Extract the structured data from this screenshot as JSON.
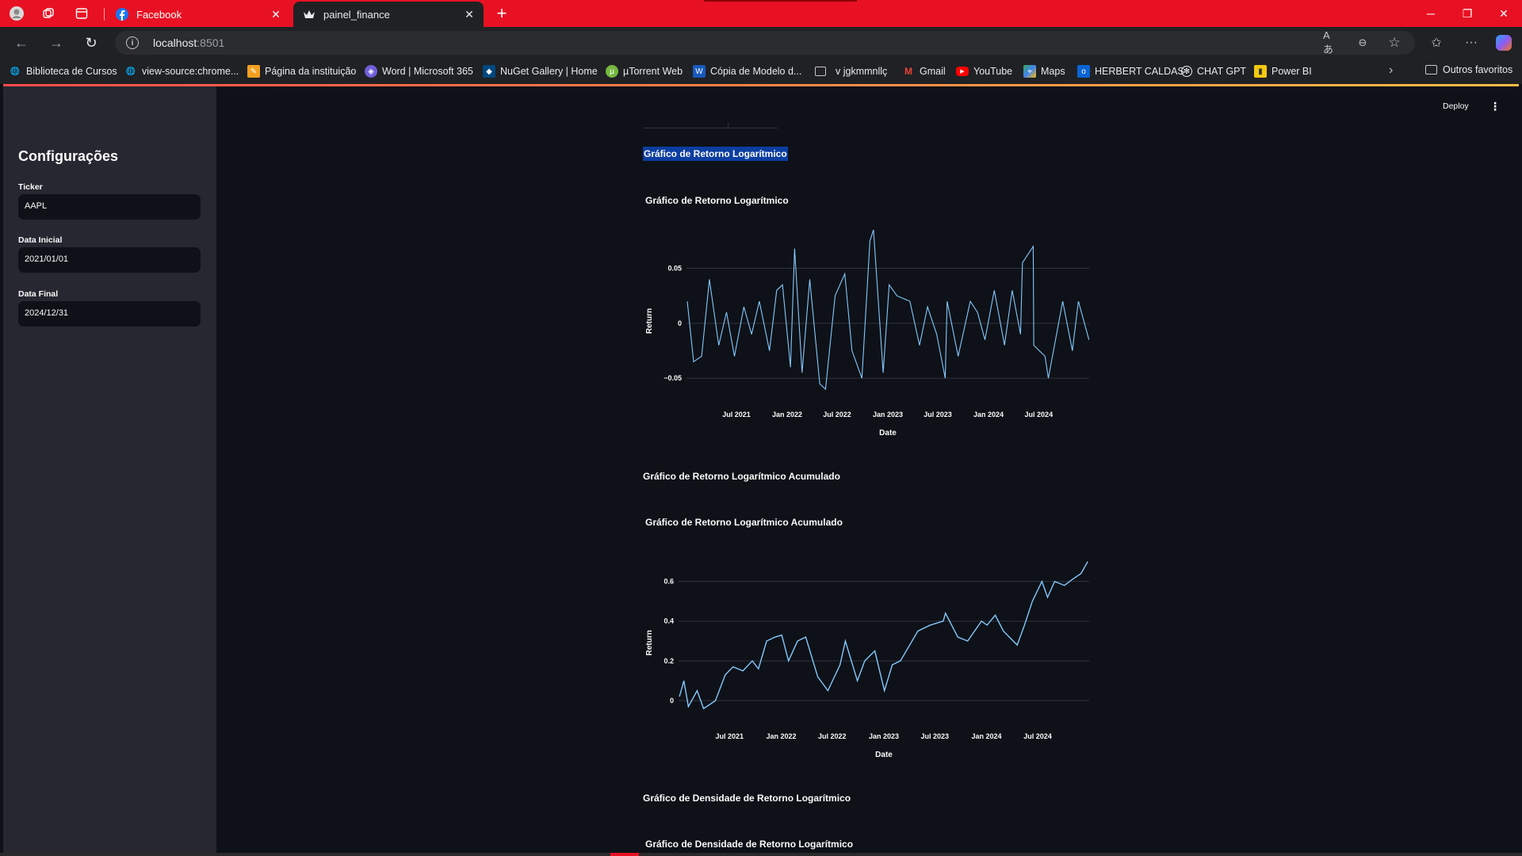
{
  "browser": {
    "tabs": [
      {
        "title": "Facebook",
        "favicon": "facebook-icon",
        "active": false
      },
      {
        "title": "painel_finance",
        "favicon": "streamlit-crown-icon",
        "active": true
      }
    ],
    "address": {
      "host": "localhost",
      "port": ":8501"
    },
    "bookmarks": [
      {
        "label": "Biblioteca de Cursos",
        "icon": "globe-icon"
      },
      {
        "label": "view-source:chrome...",
        "icon": "globe-icon"
      },
      {
        "label": "Página da instituição",
        "icon": "pencil-icon"
      },
      {
        "label": "Word | Microsoft 365",
        "icon": "word365-icon"
      },
      {
        "label": "NuGet Gallery | Home",
        "icon": "nuget-icon"
      },
      {
        "label": "µTorrent Web",
        "icon": "utorrent-icon"
      },
      {
        "label": "Cópia de Modelo d...",
        "icon": "word-icon"
      },
      {
        "label": "v jgkmmnllç",
        "icon": "folder-icon"
      },
      {
        "label": "Gmail",
        "icon": "gmail-icon"
      },
      {
        "label": "YouTube",
        "icon": "youtube-icon"
      },
      {
        "label": "Maps",
        "icon": "maps-icon"
      },
      {
        "label": "HERBERT CALDAS",
        "icon": "outlook-icon"
      },
      {
        "label": "CHAT GPT",
        "icon": "chatgpt-icon"
      },
      {
        "label": "Power BI",
        "icon": "powerbi-icon"
      }
    ],
    "other_favorites": "Outros favoritos"
  },
  "app": {
    "deploy_label": "Deploy",
    "sidebar": {
      "title": "Configurações",
      "fields": [
        {
          "label": "Ticker",
          "value": "AAPL"
        },
        {
          "label": "Data Inicial",
          "value": "2021/01/01"
        },
        {
          "label": "Data Final",
          "value": "2024/12/31"
        }
      ]
    },
    "sections": {
      "log_return": "Gráfico de Retorno Logarítmico",
      "log_return_cum": "Gráfico de Retorno Logarítmico Acumulado",
      "density": "Gráfico de Densidade de Retorno Logarítmico"
    },
    "colors": {
      "line": "#83c9ff",
      "grid": "#31333f",
      "background": "#0e1117",
      "selection": "#0c3ea1"
    }
  },
  "chart_data": [
    {
      "type": "line",
      "title": "Gráfico de Retorno Logarítmico",
      "xlabel": "Date",
      "ylabel": "Return",
      "xlim": [
        "2021-01-01",
        "2024-12-31"
      ],
      "ylim": [
        -0.065,
        0.085
      ],
      "yticks": [
        {
          "value": -0.05,
          "label": "−0.05"
        },
        {
          "value": 0,
          "label": "0"
        },
        {
          "value": 0.05,
          "label": "0.05"
        }
      ],
      "xticks": [
        "Jul 2021",
        "Jan 2022",
        "Jul 2022",
        "Jan 2023",
        "Jul 2023",
        "Jan 2024",
        "Jul 2024"
      ],
      "series": [
        {
          "x": [
            "2021-01-04",
            "2021-01-27",
            "2021-02-25",
            "2021-03-25",
            "2021-04-28",
            "2021-05-26",
            "2021-06-24",
            "2021-07-28",
            "2021-08-25",
            "2021-09-22",
            "2021-10-29",
            "2021-11-24",
            "2021-12-15",
            "2022-01-13",
            "2022-01-28",
            "2022-02-24",
            "2022-03-24",
            "2022-04-29",
            "2022-05-20",
            "2022-06-24",
            "2022-07-29",
            "2022-08-24",
            "2022-09-29",
            "2022-10-28",
            "2022-11-10",
            "2022-12-15",
            "2023-01-06",
            "2023-02-03",
            "2023-03-22",
            "2023-04-26",
            "2023-05-25",
            "2023-06-27",
            "2023-07-28",
            "2023-08-04",
            "2023-09-13",
            "2023-10-27",
            "2023-11-22",
            "2023-12-19",
            "2024-01-22",
            "2024-02-28",
            "2024-03-27",
            "2024-04-26",
            "2024-05-03",
            "2024-06-11",
            "2024-06-13",
            "2024-07-24",
            "2024-08-05",
            "2024-09-26",
            "2024-10-31",
            "2024-11-22",
            "2024-12-30"
          ],
          "values": [
            0.02,
            -0.035,
            -0.03,
            0.04,
            -0.02,
            0.01,
            -0.03,
            0.015,
            -0.01,
            0.02,
            -0.025,
            0.03,
            0.035,
            -0.04,
            0.068,
            -0.045,
            0.04,
            -0.055,
            -0.06,
            0.025,
            0.045,
            -0.025,
            -0.05,
            0.075,
            0.085,
            -0.045,
            0.035,
            0.025,
            0.02,
            -0.02,
            0.015,
            -0.01,
            -0.05,
            0.02,
            -0.03,
            0.02,
            0.01,
            -0.015,
            0.03,
            -0.02,
            0.03,
            -0.01,
            0.055,
            0.07,
            -0.02,
            -0.03,
            -0.05,
            0.02,
            -0.025,
            0.02,
            -0.015
          ]
        }
      ]
    },
    {
      "type": "line",
      "title": "Gráfico de Retorno Logarítmico Acumulado",
      "xlabel": "Date",
      "ylabel": "Return",
      "xlim": [
        "2021-01-01",
        "2024-12-31"
      ],
      "ylim": [
        -0.08,
        0.75
      ],
      "yticks": [
        {
          "value": 0,
          "label": "0"
        },
        {
          "value": 0.2,
          "label": "0.2"
        },
        {
          "value": 0.4,
          "label": "0.4"
        },
        {
          "value": 0.6,
          "label": "0.6"
        }
      ],
      "xticks": [
        "Jul 2021",
        "Jan 2022",
        "Jul 2022",
        "Jan 2023",
        "Jul 2023",
        "Jan 2024",
        "Jul 2024"
      ],
      "series": [
        {
          "x": [
            "2021-01-04",
            "2021-01-20",
            "2021-02-05",
            "2021-03-08",
            "2021-03-31",
            "2021-05-12",
            "2021-06-16",
            "2021-07-14",
            "2021-08-18",
            "2021-09-20",
            "2021-10-12",
            "2021-11-10",
            "2021-12-10",
            "2022-01-03",
            "2022-01-27",
            "2022-02-28",
            "2022-03-29",
            "2022-05-11",
            "2022-06-16",
            "2022-07-29",
            "2022-08-17",
            "2022-09-29",
            "2022-10-25",
            "2022-11-30",
            "2023-01-03",
            "2023-01-31",
            "2023-03-01",
            "2023-04-03",
            "2023-05-02",
            "2023-06-15",
            "2023-07-31",
            "2023-08-08",
            "2023-09-21",
            "2023-10-26",
            "2023-12-14",
            "2024-01-03",
            "2024-02-01",
            "2024-03-01",
            "2024-04-19",
            "2024-05-15",
            "2024-06-12",
            "2024-07-16",
            "2024-08-05",
            "2024-08-30",
            "2024-10-04",
            "2024-11-01",
            "2024-12-02",
            "2024-12-26"
          ],
          "values": [
            0.02,
            0.1,
            -0.03,
            0.05,
            -0.04,
            0.0,
            0.13,
            0.17,
            0.15,
            0.2,
            0.16,
            0.3,
            0.32,
            0.33,
            0.2,
            0.3,
            0.32,
            0.12,
            0.05,
            0.18,
            0.3,
            0.1,
            0.2,
            0.25,
            0.05,
            0.18,
            0.2,
            0.28,
            0.35,
            0.38,
            0.4,
            0.44,
            0.32,
            0.3,
            0.4,
            0.38,
            0.43,
            0.35,
            0.28,
            0.38,
            0.5,
            0.6,
            0.52,
            0.6,
            0.58,
            0.61,
            0.64,
            0.7
          ]
        }
      ]
    }
  ]
}
